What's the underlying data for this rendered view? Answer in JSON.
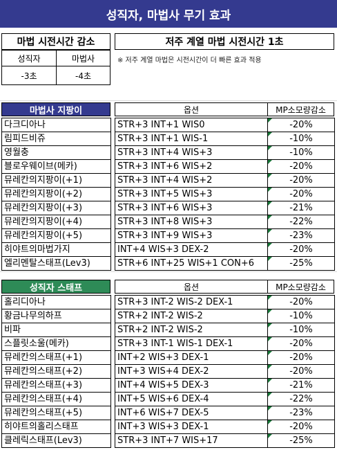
{
  "title": "성직자, 마법사 무기 효과",
  "cast_box": {
    "header": "마법 시전시간 감소",
    "col1_label": "성직자",
    "col2_label": "마법사",
    "col1_value": "-3초",
    "col2_value": "-4초"
  },
  "curse_box": {
    "header": "저주 계열 마법 시전시간 1초",
    "note": "※ 저주 계열 마법은 시전시간이 더 빠른 효과 적용"
  },
  "colors": {
    "title_bg": "#343a8f",
    "mage_header_bg": "#343a8f",
    "cleric_header_bg": "#2e8b57"
  },
  "mage": {
    "header": "마법사 지팡이",
    "option_header": "옵션",
    "mp_header": "MP소모량감소",
    "rows": [
      {
        "name": "다크디아나",
        "option": "STR+3 INT+1 WIS0",
        "mp": "-20%"
      },
      {
        "name": "림피드비쥬",
        "option": "STR+3 INT+1 WIS-1",
        "mp": "-10%"
      },
      {
        "name": "영월충",
        "option": "STR+3 INT+4 WIS+3",
        "mp": "-10%"
      },
      {
        "name": "블로우웨이브(메카)",
        "option": "STR+3 INT+6 WIS+2",
        "mp": "-20%"
      },
      {
        "name": "뮤레칸의지팡이(+1)",
        "option": "STR+3 INT+4 WIS+2",
        "mp": "-20%"
      },
      {
        "name": "뮤레칸의지팡이(+2)",
        "option": "STR+3 INT+5 WIS+3",
        "mp": "-20%"
      },
      {
        "name": "뮤레칸의지팡이(+3)",
        "option": "STR+3 INT+6 WIS+3",
        "mp": "-21%"
      },
      {
        "name": "뮤레칸의지팡이(+4)",
        "option": "STR+3 INT+8 WIS+3",
        "mp": "-22%"
      },
      {
        "name": "뮤레칸의지팡이(+5)",
        "option": "STR+3 INT+9 WIS+3",
        "mp": "-23%"
      },
      {
        "name": "히야트의마법가지",
        "option": "INT+4 WIS+3 DEX-2",
        "mp": "-20%"
      },
      {
        "name": "엘리멘탈스태프(Lev3)",
        "option": "STR+6 INT+25 WIS+1 CON+6",
        "mp": "-25%"
      }
    ]
  },
  "cleric": {
    "header": "성직자 스태프",
    "option_header": "옵션",
    "mp_header": "MP소모량감소",
    "rows": [
      {
        "name": "홀리디아나",
        "option": "STR+3 INT-2 WIS-2 DEX-1",
        "mp": "-20%"
      },
      {
        "name": "황금나무의하프",
        "option": "STR+2 INT-2 WIS-2",
        "mp": "-10%"
      },
      {
        "name": "비파",
        "option": "STR+2 INT-2 WIS-2",
        "mp": "-10%"
      },
      {
        "name": "스플릿소울(메카)",
        "option": "STR+3 INT-1 WIS-1 DEX-1",
        "mp": "-20%"
      },
      {
        "name": "뮤레칸의스태프(+1)",
        "option": "INT+2 WIS+3 DEX-1",
        "mp": "-20%"
      },
      {
        "name": "뮤레칸의스태프(+2)",
        "option": "INT+3 WIS+4 DEX-2",
        "mp": "-20%"
      },
      {
        "name": "뮤레칸의스태프(+3)",
        "option": "INT+4 WIS+5 DEX-3",
        "mp": "-21%"
      },
      {
        "name": "뮤레칸의스태프(+4)",
        "option": "INT+5 WIS+6 DEX-4",
        "mp": "-22%"
      },
      {
        "name": "뮤레칸의스태프(+5)",
        "option": "INT+6 WIS+7 DEX-5",
        "mp": "-23%"
      },
      {
        "name": "히야트의홀리스태프",
        "option": "INT+3 WIS+3 DEX-1",
        "mp": "-20%"
      },
      {
        "name": "클레릭스태프(Lev3)",
        "option": "STR+3 INT+7 WIS+17",
        "mp": "-25%"
      }
    ]
  }
}
